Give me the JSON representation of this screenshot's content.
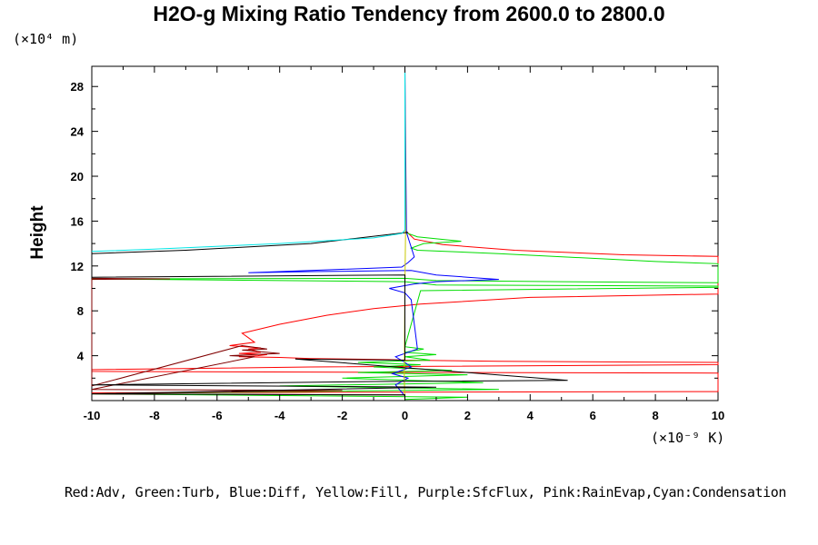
{
  "chart_data": {
    "type": "line",
    "title": "H2O-g Mixing Ratio Tendency from 2600.0 to 2800.0",
    "ylabel": "Height",
    "y_unit": "(×10⁴ m)",
    "x_unit": "(×10⁻⁹ K)",
    "xlim": [
      -10,
      10
    ],
    "ylim": [
      0,
      29.8
    ],
    "x_ticks": [
      -10,
      -8,
      -6,
      -4,
      -2,
      0,
      2,
      4,
      6,
      8,
      10
    ],
    "y_ticks": [
      4,
      8,
      12,
      16,
      20,
      24,
      28
    ],
    "grid": false,
    "legend_text": "Red:Adv, Green:Turb, Blue:Diff, Yellow:Fill, Purple:SfcFlux, Pink:RainEvap,Cyan:Condensation",
    "series": [
      {
        "name": "Adv",
        "color": "#ff0000",
        "x": [
          0,
          0.3,
          1.2,
          3.5,
          7,
          10,
          10,
          4,
          0.5,
          -1,
          -2.5,
          -4,
          -5.2,
          -5.0,
          -4.8,
          -5.6,
          -4.6,
          -5.0,
          -4.6,
          -5.3,
          -4.4,
          -4.7,
          -5.3,
          -4.0,
          -3,
          -0.5,
          0,
          3,
          10,
          10,
          -3,
          -10,
          -10,
          2,
          10,
          10,
          -10,
          0,
          10
        ],
        "y": [
          15.2,
          14.4,
          13.9,
          13.4,
          13.0,
          12.85,
          9.5,
          9.2,
          8.6,
          8.2,
          7.6,
          6.8,
          6.0,
          5.6,
          5.2,
          4.9,
          4.7,
          4.6,
          4.3,
          4.2,
          4.1,
          4.0,
          3.9,
          3.85,
          3.75,
          3.65,
          3.6,
          3.5,
          3.4,
          3.2,
          3.0,
          2.75,
          2.6,
          2.5,
          2.45,
          0.8,
          0.7,
          0.75,
          0.8
        ]
      },
      {
        "name": "Turb",
        "color": "#00dd00",
        "x": [
          0,
          0.4,
          1.8,
          0.6,
          0.2,
          0.4,
          3,
          8,
          10,
          10,
          5,
          1,
          0,
          -10,
          0,
          1,
          10,
          10,
          0.5,
          0,
          0.6,
          0,
          1.0,
          0,
          0.8,
          -1.5,
          0.5,
          -1,
          1.5,
          -1.5,
          2,
          -2,
          2.5,
          -4,
          3,
          -10,
          2,
          0
        ],
        "y": [
          15.0,
          14.6,
          14.2,
          14.0,
          13.6,
          13.4,
          13.1,
          12.4,
          12.2,
          10.5,
          10.6,
          10.7,
          10.9,
          10.85,
          10.6,
          10.3,
          10.2,
          10.1,
          9.8,
          4.8,
          4.6,
          4.3,
          4.1,
          3.9,
          3.6,
          3.4,
          3.2,
          3.0,
          2.7,
          2.5,
          2.3,
          2.0,
          1.6,
          1.3,
          1.0,
          0.6,
          0.3,
          0.1
        ]
      },
      {
        "name": "Diff",
        "color": "#0000ff",
        "x": [
          0,
          0.05,
          0.3,
          0.1,
          -0.1,
          -3,
          -5,
          -3,
          0.2,
          1,
          2,
          3,
          1,
          0.3,
          -0.5,
          0,
          0.2,
          0.4,
          -0.3,
          0,
          0.2,
          -0.4,
          0.1,
          -0.3,
          0
        ],
        "y": [
          29.8,
          15.0,
          12.8,
          12.3,
          11.9,
          11.6,
          11.4,
          11.5,
          11.6,
          11.2,
          11.0,
          10.8,
          10.6,
          10.4,
          10.0,
          9.6,
          9.0,
          4.6,
          3.9,
          3.4,
          3.0,
          2.4,
          2.0,
          1.4,
          0.4
        ]
      },
      {
        "name": "Fill",
        "color": "#c8c800",
        "x": [
          0,
          0.02,
          0,
          -0.02,
          0
        ],
        "y": [
          29.8,
          15.0,
          10.0,
          2.0,
          0.0
        ]
      },
      {
        "name": "SfcFlux",
        "color": "#800000",
        "x": [
          -10,
          -7.5,
          -10,
          -10,
          -5.2,
          -4.4,
          -5.2,
          -4.0,
          -5.6,
          -4.8,
          -10,
          -2,
          -10,
          0
        ],
        "y": [
          10.9,
          10.85,
          10.8,
          1.3,
          4.9,
          4.6,
          4.5,
          4.2,
          4.0,
          3.9,
          1.0,
          0.9,
          0.6,
          0.5
        ]
      },
      {
        "name": "Black",
        "color": "#000000",
        "x": [
          0.1,
          -3,
          -7,
          -10,
          -10,
          0,
          0,
          -3.5,
          5.2,
          -1,
          -10,
          1,
          -10,
          0
        ],
        "y": [
          15.0,
          14.0,
          13.4,
          13.1,
          11.0,
          11.2,
          3.6,
          3.7,
          1.8,
          1.7,
          1.4,
          1.2,
          0.6,
          0.5
        ]
      },
      {
        "name": "Condensation",
        "color": "#00e5e5",
        "x": [
          0,
          0,
          -0.1,
          -1,
          -4,
          -8,
          -10
        ],
        "y": [
          29.8,
          15.2,
          14.9,
          14.5,
          14.0,
          13.5,
          13.3
        ]
      }
    ]
  }
}
